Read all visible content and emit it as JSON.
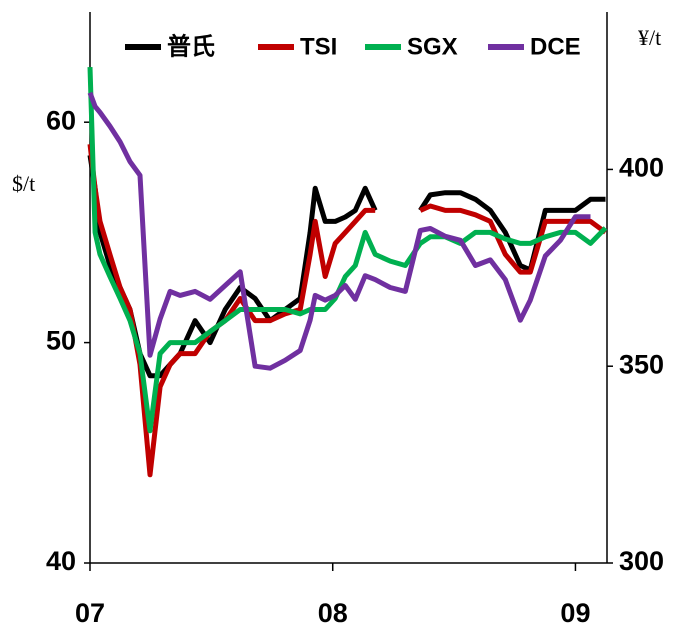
{
  "chart_data": {
    "type": "line",
    "x": [
      2007,
      2007.021,
      2007.041,
      2007.082,
      2007.124,
      2007.165,
      2007.206,
      2007.247,
      2007.289,
      2007.33,
      2007.371,
      2007.433,
      2007.495,
      2007.557,
      2007.619,
      2007.68,
      2007.742,
      2007.804,
      2007.866,
      2007.907,
      2007.928,
      2007.969,
      2008.01,
      2008.052,
      2008.093,
      2008.134,
      2008.175,
      2008.237,
      2008.299,
      2008.361,
      2008.402,
      2008.464,
      2008.526,
      2008.588,
      2008.649,
      2008.711,
      2008.773,
      2008.814,
      2008.876,
      2008.938,
      2009,
      2009.062,
      2009.124
    ],
    "series": [
      {
        "name": "普氏",
        "color": "#000000",
        "values": [
          58.5,
          57,
          55,
          53.5,
          52.5,
          51.5,
          49.5,
          48.5,
          48.5,
          49,
          49.5,
          51,
          50,
          51.5,
          52.5,
          52,
          51,
          51.5,
          52,
          55,
          57,
          55.5,
          55.5,
          55.7,
          56,
          57,
          56,
          null,
          null,
          56,
          56.7,
          56.8,
          56.8,
          56.5,
          56,
          55,
          53.5,
          53.3,
          56,
          56,
          56,
          56.5,
          56.5
        ]
      },
      {
        "name": "TSI",
        "color": "#c00000",
        "values": [
          59,
          57,
          55.5,
          54,
          52.5,
          51.5,
          49,
          44,
          48,
          49,
          49.5,
          49.5,
          50.5,
          51,
          52,
          51,
          51,
          51.3,
          51.5,
          54,
          55.5,
          53,
          54.5,
          55,
          55.5,
          56,
          56,
          null,
          null,
          56,
          56.2,
          56,
          56,
          55.8,
          55.5,
          54,
          53.2,
          53.2,
          55.5,
          55.5,
          55.5,
          55.5,
          55
        ]
      },
      {
        "name": "SGX",
        "color": "#00b050",
        "values": [
          62.5,
          55,
          54,
          53,
          52,
          51,
          49.5,
          46,
          49.5,
          50,
          50,
          50,
          50.5,
          51,
          51.5,
          51.5,
          51.5,
          51.5,
          51.3,
          51.5,
          51.5,
          51.5,
          52,
          53,
          53.5,
          55,
          54,
          53.7,
          53.5,
          54.5,
          54.8,
          54.8,
          54.5,
          55,
          55,
          54.7,
          54.5,
          54.5,
          54.8,
          55,
          55,
          54.5,
          55.2
        ]
      },
      {
        "name": "DCE",
        "color": "#7030a0",
        "axis": "y2",
        "values": [
          419.5,
          416,
          414.5,
          411,
          407,
          402,
          398.5,
          352.8,
          362,
          369,
          368,
          369,
          367,
          370.5,
          374,
          350,
          349.5,
          351.5,
          354,
          361.7,
          368,
          366.8,
          368,
          370.5,
          367,
          373,
          372,
          370,
          369,
          384.5,
          385,
          383,
          382,
          375.6,
          377,
          372,
          361.7,
          366.8,
          378,
          382,
          388,
          388,
          null
        ]
      }
    ],
    "xlim": [
      2007,
      2009.13
    ],
    "xticks": [
      {
        "value": 2007,
        "label": "07"
      },
      {
        "value": 2008,
        "label": "08"
      },
      {
        "value": 2009,
        "label": "09"
      }
    ],
    "ylim": [
      40,
      65
    ],
    "yticks": [
      40,
      50,
      60
    ],
    "y2lim": [
      300,
      440
    ],
    "y2ticks": [
      300,
      350,
      400
    ],
    "ylabel": "$/t",
    "y2label": "¥/t",
    "legend": "top",
    "grid": false
  }
}
